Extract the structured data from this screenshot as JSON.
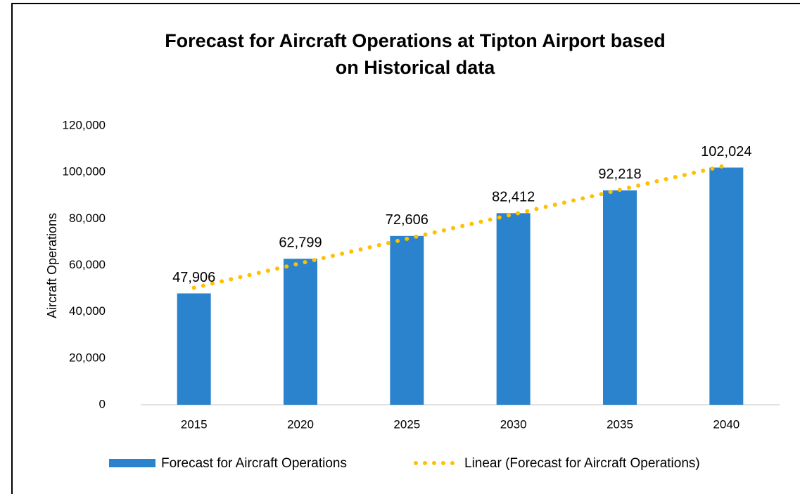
{
  "chart_data": {
    "type": "bar",
    "title": "Forecast for Aircraft Operations at Tipton Airport based on Historical data",
    "y_axis_label": "Aircraft Operations",
    "categories": [
      "2015",
      "2020",
      "2025",
      "2030",
      "2035",
      "2040"
    ],
    "series": [
      {
        "name": "Forecast for Aircraft Operations",
        "color": "#2a83cc",
        "values": [
          47906,
          62799,
          72606,
          82412,
          92218,
          102024
        ],
        "value_labels": [
          "47,906",
          "62,799",
          "72,606",
          "82,412",
          "92,218",
          "102,024"
        ]
      }
    ],
    "trendline": {
      "name": "Linear (Forecast for Aircraft Operations)",
      "color": "#ffc000",
      "style": "dotted"
    },
    "ylim": [
      0,
      120000
    ],
    "yticks": [
      0,
      {
        "value": 20000,
        "label": "20,000"
      },
      {
        "value": 40000,
        "label": "40,000"
      },
      {
        "value": 60000,
        "label": "60,000"
      },
      {
        "value": 80000,
        "label": "80,000"
      },
      {
        "value": 100000,
        "label": "100,000"
      },
      {
        "value": 120000,
        "label": "120,000"
      }
    ],
    "grid": false,
    "legend": "bottom"
  }
}
